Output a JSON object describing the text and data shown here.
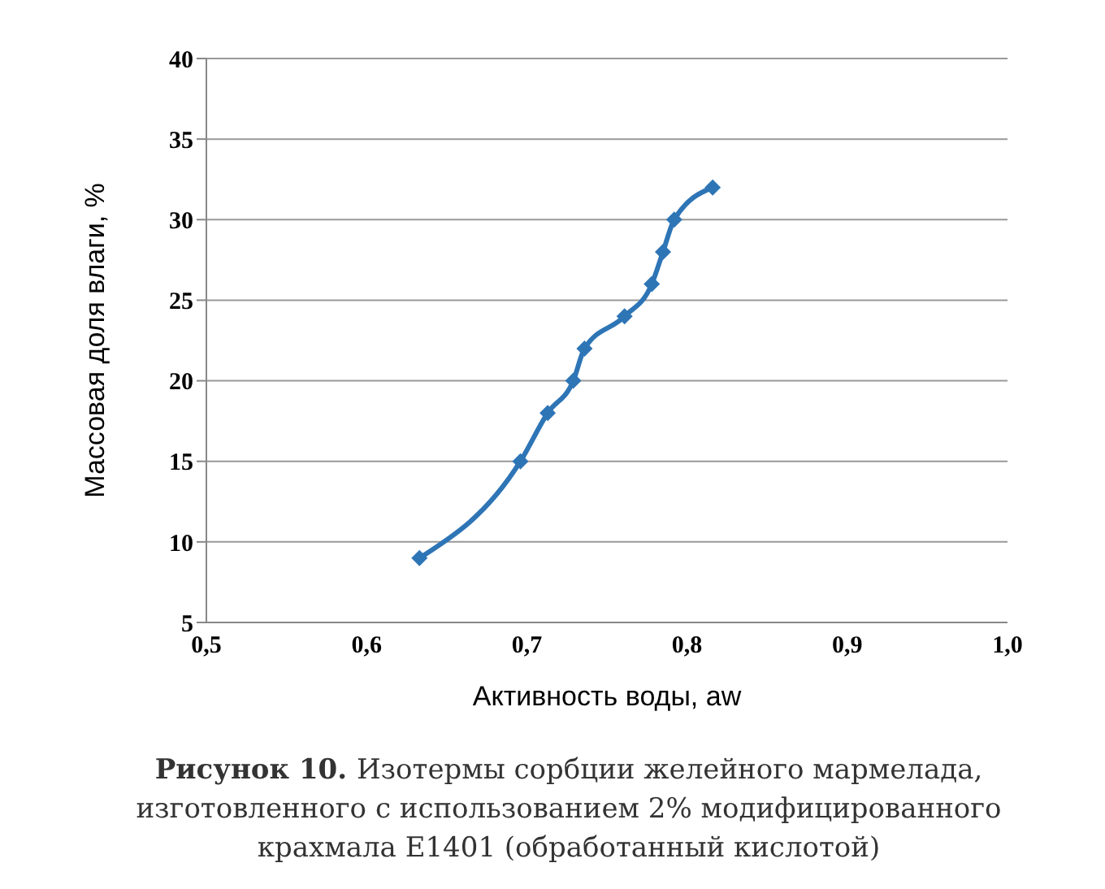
{
  "chart_data": {
    "type": "line",
    "xlabel": "Активность воды, aw",
    "ylabel": "Массовая доля влаги, %",
    "annotations": [
      "Рисунок 10.",
      "Изотермы сорбции желейного мармелада, изготовленного с использованием 2% модифицированного крахмала Е1401 (обработанный кислотой)"
    ],
    "x": [
      0.633,
      0.696,
      0.713,
      0.729,
      0.736,
      0.761,
      0.778,
      0.785,
      0.792,
      0.816
    ],
    "series": [
      {
        "color": "#2e75b6",
        "values": [
          9,
          15,
          18,
          20,
          22,
          24,
          26,
          28,
          30,
          32
        ]
      }
    ],
    "xlim": [
      0.5,
      1.0
    ],
    "xticks": [
      {
        "value": 0.5,
        "label": "0,5"
      },
      {
        "value": 0.6,
        "label": "0,6"
      },
      {
        "value": 0.7,
        "label": "0,7"
      },
      {
        "value": 0.8,
        "label": "0,8"
      },
      {
        "value": 0.9,
        "label": "0,9"
      },
      {
        "value": 1.0,
        "label": "1,0"
      }
    ],
    "ylim": [
      5,
      40
    ],
    "yticks": [
      5,
      10,
      15,
      20,
      25,
      30,
      35,
      40
    ],
    "grid": "y",
    "legend": false,
    "marker": "diamond",
    "line_style": "solid"
  }
}
